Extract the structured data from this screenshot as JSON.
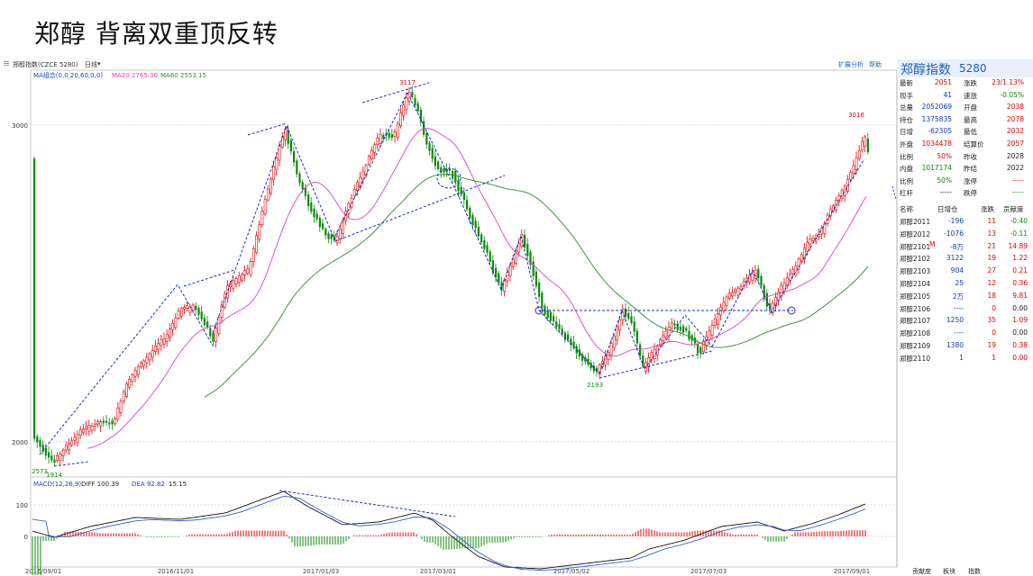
{
  "slide_title": "郑醇 背离双重顶反转",
  "topbar": {
    "left_label": "郑醇指数(CZCE 5280)",
    "period": "日线",
    "right_buttons": [
      "扩展分析",
      "帮助"
    ]
  },
  "ma_legend": {
    "name": "MA组合(0,0,20,60,0,0)",
    "ma20": "MA20 2765.30",
    "ma60": "MA60 2553.15",
    "ma20_color": "#e040c8",
    "ma60_color": "#2e8b2e"
  },
  "macd_legend": {
    "name": "MACD(12,26,9)",
    "diff": "DIFF 100.39",
    "dea": "DEA 92.82",
    "macd": "15.15"
  },
  "price_axis_labels": [
    "3000",
    "2000"
  ],
  "macd_axis_labels": [
    "100",
    "0"
  ],
  "date_labels": [
    "2016/09/01",
    "2016/11/01",
    "2017/01/03",
    "2017/03/01",
    "2017/05/02",
    "2017/07/03",
    "2017/09/01"
  ],
  "annotations": [
    "3117",
    "3016",
    "2193",
    "1914",
    "2573"
  ],
  "right_panel": {
    "title": "郑醇指数",
    "code": "5280",
    "quote_rows": [
      {
        "l1": "最新",
        "v1": "2051",
        "c1": "red",
        "l2": "涨跌",
        "v2": "23/1.13%",
        "c2": "red"
      },
      {
        "l1": "现手",
        "v1": "41",
        "c1": "blue",
        "l2": "速涨",
        "v2": "-0.05%",
        "c2": "green"
      },
      {
        "l1": "总量",
        "v1": "2052069",
        "c1": "blue",
        "l2": "开盘",
        "v2": "2038",
        "c2": "red"
      },
      {
        "l1": "持仓",
        "v1": "1375835",
        "c1": "blue",
        "l2": "最高",
        "v2": "2078",
        "c2": "red"
      },
      {
        "l1": "日增",
        "v1": "-62305",
        "c1": "blue",
        "l2": "最低",
        "v2": "2032",
        "c2": "red"
      },
      {
        "l1": "外盘",
        "v1": "1034478",
        "c1": "red",
        "l2": "结算价",
        "v2": "2057",
        "c2": "red"
      },
      {
        "l1": "比例",
        "v1": "50%",
        "c1": "red",
        "l2": "昨收",
        "v2": "2028",
        "c2": "black"
      },
      {
        "l1": "内盘",
        "v1": "1017174",
        "c1": "green",
        "l2": "昨结",
        "v2": "2022",
        "c2": "black"
      },
      {
        "l1": "比例",
        "v1": "50%",
        "c1": "green",
        "l2": "涨停",
        "v2": "-----",
        "c2": "red"
      },
      {
        "l1": "杠杆",
        "v1": "-----",
        "c1": "black",
        "l2": "跌停",
        "v2": "-----",
        "c2": "green"
      }
    ],
    "table_headers": [
      "名称",
      "日增仓",
      "涨跌",
      "贡献度"
    ],
    "contract_rows": [
      {
        "name": "郑醇2011",
        "oi": "-196",
        "chg": "11",
        "contrib": "-0.40",
        "cc": "green"
      },
      {
        "name": "郑醇2012",
        "oi": "-1076",
        "chg": "13",
        "contrib": "-0.11",
        "cc": "green"
      },
      {
        "name": "郑醇2101",
        "flag": "M",
        "oi": "-8万",
        "chg": "21",
        "contrib": "14.89",
        "cc": "red"
      },
      {
        "name": "郑醇2102",
        "oi": "3122",
        "chg": "19",
        "contrib": "1.22",
        "cc": "red"
      },
      {
        "name": "郑醇2103",
        "oi": "904",
        "chg": "27",
        "contrib": "0.21",
        "cc": "red"
      },
      {
        "name": "郑醇2104",
        "oi": "25",
        "chg": "12",
        "contrib": "0.36",
        "cc": "red"
      },
      {
        "name": "郑醇2105",
        "oi": "2万",
        "chg": "18",
        "contrib": "9.81",
        "cc": "red"
      },
      {
        "name": "郑醇2106",
        "oi": "----",
        "chg": "0",
        "contrib": "0.00",
        "cc": "black"
      },
      {
        "name": "郑醇2107",
        "oi": "1250",
        "chg": "35",
        "contrib": "1.09",
        "cc": "red"
      },
      {
        "name": "郑醇2108",
        "oi": "----",
        "chg": "0",
        "contrib": "0.00",
        "cc": "black"
      },
      {
        "name": "郑醇2109",
        "oi": "1380",
        "chg": "19",
        "contrib": "0.38",
        "cc": "red"
      },
      {
        "name": "郑醇2110",
        "oi": "1",
        "chg": "1",
        "contrib": "0.00",
        "cc": "red"
      }
    ]
  },
  "bottom_tabs": [
    "贡献度",
    "板块",
    "指数"
  ],
  "colors": {
    "up": "#e00000",
    "down": "#0a8a0a",
    "trendline": "#1a2fc0",
    "price_line": "#222222"
  }
}
